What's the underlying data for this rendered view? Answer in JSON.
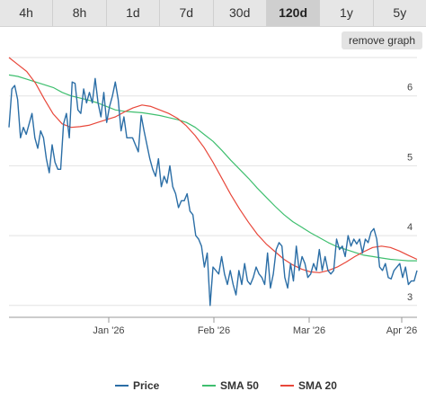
{
  "range_tabs": {
    "items": [
      {
        "label": "4h"
      },
      {
        "label": "8h"
      },
      {
        "label": "1d"
      },
      {
        "label": "7d"
      },
      {
        "label": "30d"
      },
      {
        "label": "120d"
      },
      {
        "label": "1y"
      },
      {
        "label": "5y"
      }
    ],
    "selected": "120d"
  },
  "remove_graph_label": "remove graph",
  "chart_data": {
    "type": "line",
    "x_ticks": [
      "Jan '26",
      "Feb '26",
      "Mar '26",
      "Apr '26"
    ],
    "y_ticks": [
      3,
      4,
      5,
      6
    ],
    "ylim": [
      2.83,
      6.55
    ],
    "grid": true,
    "legend_position": "bottom",
    "series": [
      {
        "name": "Price",
        "color": "#2b6ea6",
        "values": [
          5.55,
          6.1,
          6.15,
          5.95,
          5.4,
          5.55,
          5.45,
          5.6,
          5.75,
          5.4,
          5.25,
          5.5,
          5.4,
          5.1,
          4.9,
          5.3,
          5.05,
          4.95,
          4.95,
          5.6,
          5.75,
          5.4,
          6.2,
          6.18,
          5.8,
          5.75,
          6.1,
          5.9,
          6.05,
          5.9,
          6.25,
          5.9,
          5.7,
          6.05,
          5.62,
          5.85,
          6.0,
          6.2,
          5.95,
          5.5,
          5.7,
          5.4,
          5.4,
          5.4,
          5.3,
          5.2,
          5.72,
          5.5,
          5.3,
          5.1,
          4.95,
          4.85,
          5.1,
          4.7,
          4.85,
          4.75,
          5.0,
          4.7,
          4.6,
          4.4,
          4.5,
          4.5,
          4.6,
          4.35,
          4.3,
          4.0,
          3.95,
          3.85,
          3.55,
          3.75,
          3.0,
          3.55,
          3.5,
          3.45,
          3.7,
          3.45,
          3.3,
          3.5,
          3.3,
          3.15,
          3.5,
          3.3,
          3.6,
          3.35,
          3.3,
          3.4,
          3.55,
          3.45,
          3.4,
          3.3,
          3.75,
          3.25,
          3.45,
          3.8,
          3.9,
          3.85,
          3.4,
          3.25,
          3.6,
          3.35,
          3.85,
          3.5,
          3.7,
          3.6,
          3.4,
          3.45,
          3.6,
          3.5,
          3.8,
          3.5,
          3.7,
          3.5,
          3.45,
          3.5,
          3.95,
          3.8,
          3.85,
          3.7,
          4.0,
          3.85,
          3.95,
          3.88,
          3.95,
          3.75,
          3.95,
          3.9,
          4.05,
          4.1,
          3.95,
          3.55,
          3.5,
          3.6,
          3.4,
          3.38,
          3.5,
          3.55,
          3.6,
          3.4,
          3.55,
          3.3,
          3.35,
          3.35,
          3.5
        ]
      },
      {
        "name": "SMA 50",
        "color": "#3fbf6f",
        "values": [
          6.3,
          6.28,
          6.24,
          6.2,
          6.16,
          6.12,
          6.05,
          6.0,
          5.97,
          5.94,
          5.9,
          5.85,
          5.8,
          5.78,
          5.77,
          5.76,
          5.74,
          5.72,
          5.69,
          5.66,
          5.62,
          5.55,
          5.45,
          5.35,
          5.22,
          5.08,
          4.95,
          4.82,
          4.68,
          4.55,
          4.42,
          4.3,
          4.2,
          4.12,
          4.04,
          3.97,
          3.9,
          3.84,
          3.8,
          3.76,
          3.72,
          3.7,
          3.68,
          3.66,
          3.65,
          3.64,
          3.64
        ]
      },
      {
        "name": "SMA 20",
        "color": "#e8473a",
        "values": [
          6.55,
          6.45,
          6.35,
          6.18,
          5.95,
          5.74,
          5.6,
          5.55,
          5.56,
          5.58,
          5.62,
          5.66,
          5.7,
          5.77,
          5.83,
          5.87,
          5.85,
          5.8,
          5.75,
          5.68,
          5.57,
          5.43,
          5.26,
          5.05,
          4.82,
          4.59,
          4.38,
          4.19,
          4.02,
          3.88,
          3.77,
          3.66,
          3.58,
          3.52,
          3.48,
          3.47,
          3.5,
          3.55,
          3.62,
          3.7,
          3.77,
          3.83,
          3.85,
          3.83,
          3.78,
          3.72,
          3.66
        ]
      }
    ]
  }
}
